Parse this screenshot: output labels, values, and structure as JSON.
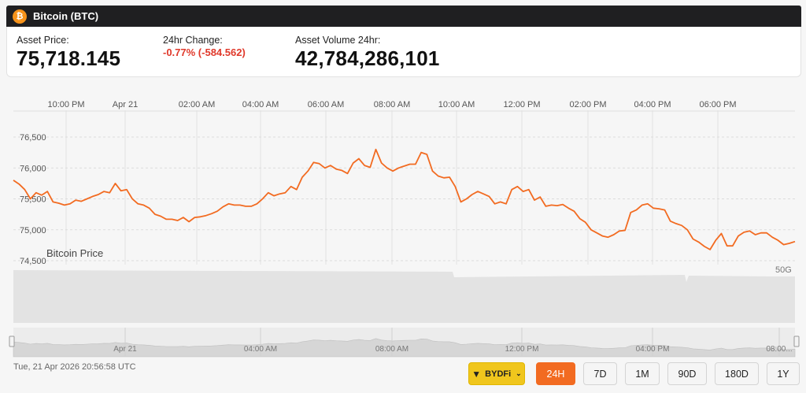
{
  "header": {
    "title": "Bitcoin (BTC)",
    "icon": "bitcoin-icon",
    "icon_glyph": "₿"
  },
  "stats": {
    "price_label": "Asset Price:",
    "price_value": "75,718.145",
    "change_label": "24hr Change:",
    "change_value": "-0.77% (-584.562)",
    "change_color": "#e0392b",
    "volume_label": "Asset Volume 24hr:",
    "volume_value": "42,784,286,101"
  },
  "chart_data": {
    "type": "line",
    "series": [
      {
        "name": "Bitcoin Price",
        "color": "#f26b21",
        "values": [
          75800,
          75740,
          75650,
          75500,
          75600,
          75560,
          75620,
          75450,
          75430,
          75400,
          75420,
          75480,
          75460,
          75500,
          75540,
          75570,
          75620,
          75600,
          75750,
          75630,
          75650,
          75500,
          75420,
          75400,
          75350,
          75250,
          75220,
          75170,
          75170,
          75150,
          75200,
          75130,
          75200,
          75210,
          75230,
          75260,
          75300,
          75370,
          75420,
          75400,
          75400,
          75380,
          75380,
          75420,
          75500,
          75600,
          75550,
          75580,
          75600,
          75700,
          75650,
          75850,
          75950,
          76090,
          76070,
          76000,
          76040,
          75980,
          75960,
          75910,
          76080,
          76150,
          76040,
          76010,
          76300,
          76080,
          76000,
          75950,
          76000,
          76030,
          76060,
          76060,
          76250,
          76220,
          75950,
          75870,
          75840,
          75850,
          75700,
          75450,
          75500,
          75570,
          75620,
          75580,
          75540,
          75420,
          75450,
          75420,
          75650,
          75700,
          75620,
          75650,
          75480,
          75530,
          75380,
          75400,
          75390,
          75410,
          75350,
          75300,
          75180,
          75120,
          75000,
          74950,
          74900,
          74880,
          74920,
          74980,
          74990,
          75280,
          75320,
          75400,
          75420,
          75350,
          75340,
          75320,
          75140,
          75100,
          75070,
          75000,
          74850,
          74800,
          74730,
          74680,
          74830,
          74940,
          74740,
          74740,
          74900,
          74960,
          74980,
          74920,
          74950,
          74950,
          74880,
          74830,
          74760,
          74780,
          74810
        ]
      }
    ],
    "y_ticks": [
      "76,500",
      "76,000",
      "75,500",
      "75,000",
      "74,500"
    ],
    "y_tick_values": [
      76500,
      76000,
      75500,
      75000,
      74500
    ],
    "ylim": [
      74500,
      76500
    ],
    "x_ticks": [
      "10:00 PM",
      "Apr 21",
      "02:00 AM",
      "04:00 AM",
      "06:00 AM",
      "08:00 AM",
      "10:00 AM",
      "12:00 PM",
      "02:00 PM",
      "04:00 PM",
      "06:00 PM"
    ],
    "volume_label": "50G",
    "navigator_ticks": [
      "Apr 21",
      "04:00 AM",
      "08:00 AM",
      "12:00 PM",
      "04:00 PM",
      "08:00..."
    ],
    "grid": true
  },
  "footer": {
    "timestamp": "Tue, 21 Apr 2026 20:56:58 UTC",
    "exchange_label": "BYDFi",
    "exchange_logo": "bydfi-logo-icon",
    "ranges": [
      "24H",
      "7D",
      "1M",
      "90D",
      "180D",
      "1Y"
    ],
    "active_range": "24H"
  }
}
